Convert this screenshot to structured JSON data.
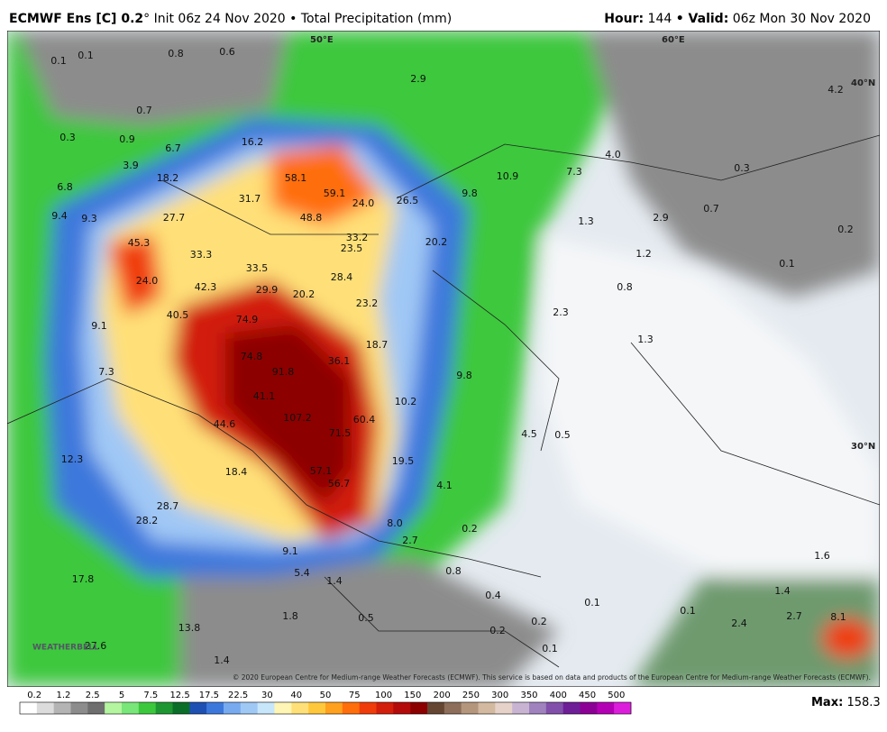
{
  "header": {
    "model": "ECMWF Ens [C] 0.2",
    "rest": "° Init 06z 24 Nov 2020 • Total Precipitation (mm)",
    "hour_key": "Hour:",
    "hour": "144",
    "valid_key": "• Valid:",
    "valid": "06z Mon 30 Nov 2020"
  },
  "graticule": [
    "50°E",
    "60°E",
    "40°N",
    "30°N"
  ],
  "logo": "WEATHERBELL",
  "copyright": "© 2020 European Centre for Medium-range Weather Forecasts (ECMWF). This service is based on data and products of the European Centre for Medium-range Weather Forecasts (ECMWF).",
  "map_labels": [
    "0.1",
    "0.1",
    "0.8",
    "0.6",
    "2.9",
    "4.2",
    "0.3",
    "0.7",
    "0.9",
    "6.7",
    "16.2",
    "3.9",
    "18.2",
    "58.1",
    "59.1",
    "24.0",
    "26.5",
    "9.8",
    "10.9",
    "7.3",
    "4.0",
    "0.3",
    "6.8",
    "9.4",
    "9.3",
    "27.7",
    "31.7",
    "48.8",
    "33.2",
    "23.5",
    "20.2",
    "1.3",
    "2.9",
    "0.7",
    "0.2",
    "45.3",
    "33.3",
    "33.5",
    "28.4",
    "1.2",
    "0.1",
    "24.0",
    "42.3",
    "29.9",
    "20.2",
    "23.2",
    "0.8",
    "40.5",
    "74.9",
    "2.3",
    "9.1",
    "18.7",
    "1.3",
    "74.8",
    "36.1",
    "91.8",
    "9.8",
    "7.3",
    "41.1",
    "10.2",
    "107.2",
    "60.4",
    "44.6",
    "71.5",
    "4.5",
    "0.5",
    "19.5",
    "12.3",
    "18.4",
    "57.1",
    "4.1",
    "56.7",
    "28.7",
    "28.2",
    "8.0",
    "0.2",
    "2.7",
    "9.1",
    "0.8",
    "1.6",
    "5.4",
    "1.4",
    "17.8",
    "0.4",
    "0.1",
    "1.4",
    "1.8",
    "0.5",
    "0.1",
    "2.7",
    "8.1",
    "2.4",
    "13.8",
    "0.2",
    "0.2",
    "27.6",
    "1.4",
    "0.1"
  ],
  "colorbar": {
    "ticks": [
      0.2,
      1.2,
      2.5,
      5,
      7.5,
      12.5,
      17.5,
      22.5,
      30,
      40,
      50,
      75,
      100,
      150,
      200,
      250,
      300,
      350,
      400,
      450,
      500
    ],
    "colors": [
      "#ffffff",
      "#dcdcdc",
      "#b4b4b4",
      "#8c8c8c",
      "#6e6e6e",
      "#b4f5a0",
      "#78e678",
      "#3cc83c",
      "#1e9632",
      "#0a6e28",
      "#1e50b4",
      "#3c78dc",
      "#78aaf0",
      "#a0c8f5",
      "#c8e6fa",
      "#fff5b4",
      "#ffe078",
      "#ffc83c",
      "#ffa01e",
      "#ff6e0a",
      "#f03c0a",
      "#d21e0a",
      "#b40a0a",
      "#8c0000",
      "#644632",
      "#8c6e5a",
      "#b4967d",
      "#d2b9a0",
      "#e6d2c8",
      "#c8b4d2",
      "#a082be",
      "#8250aa",
      "#6e1e96",
      "#8c0096",
      "#b400b4",
      "#dc1edc"
    ],
    "max_key": "Max:",
    "max": "158.3"
  }
}
